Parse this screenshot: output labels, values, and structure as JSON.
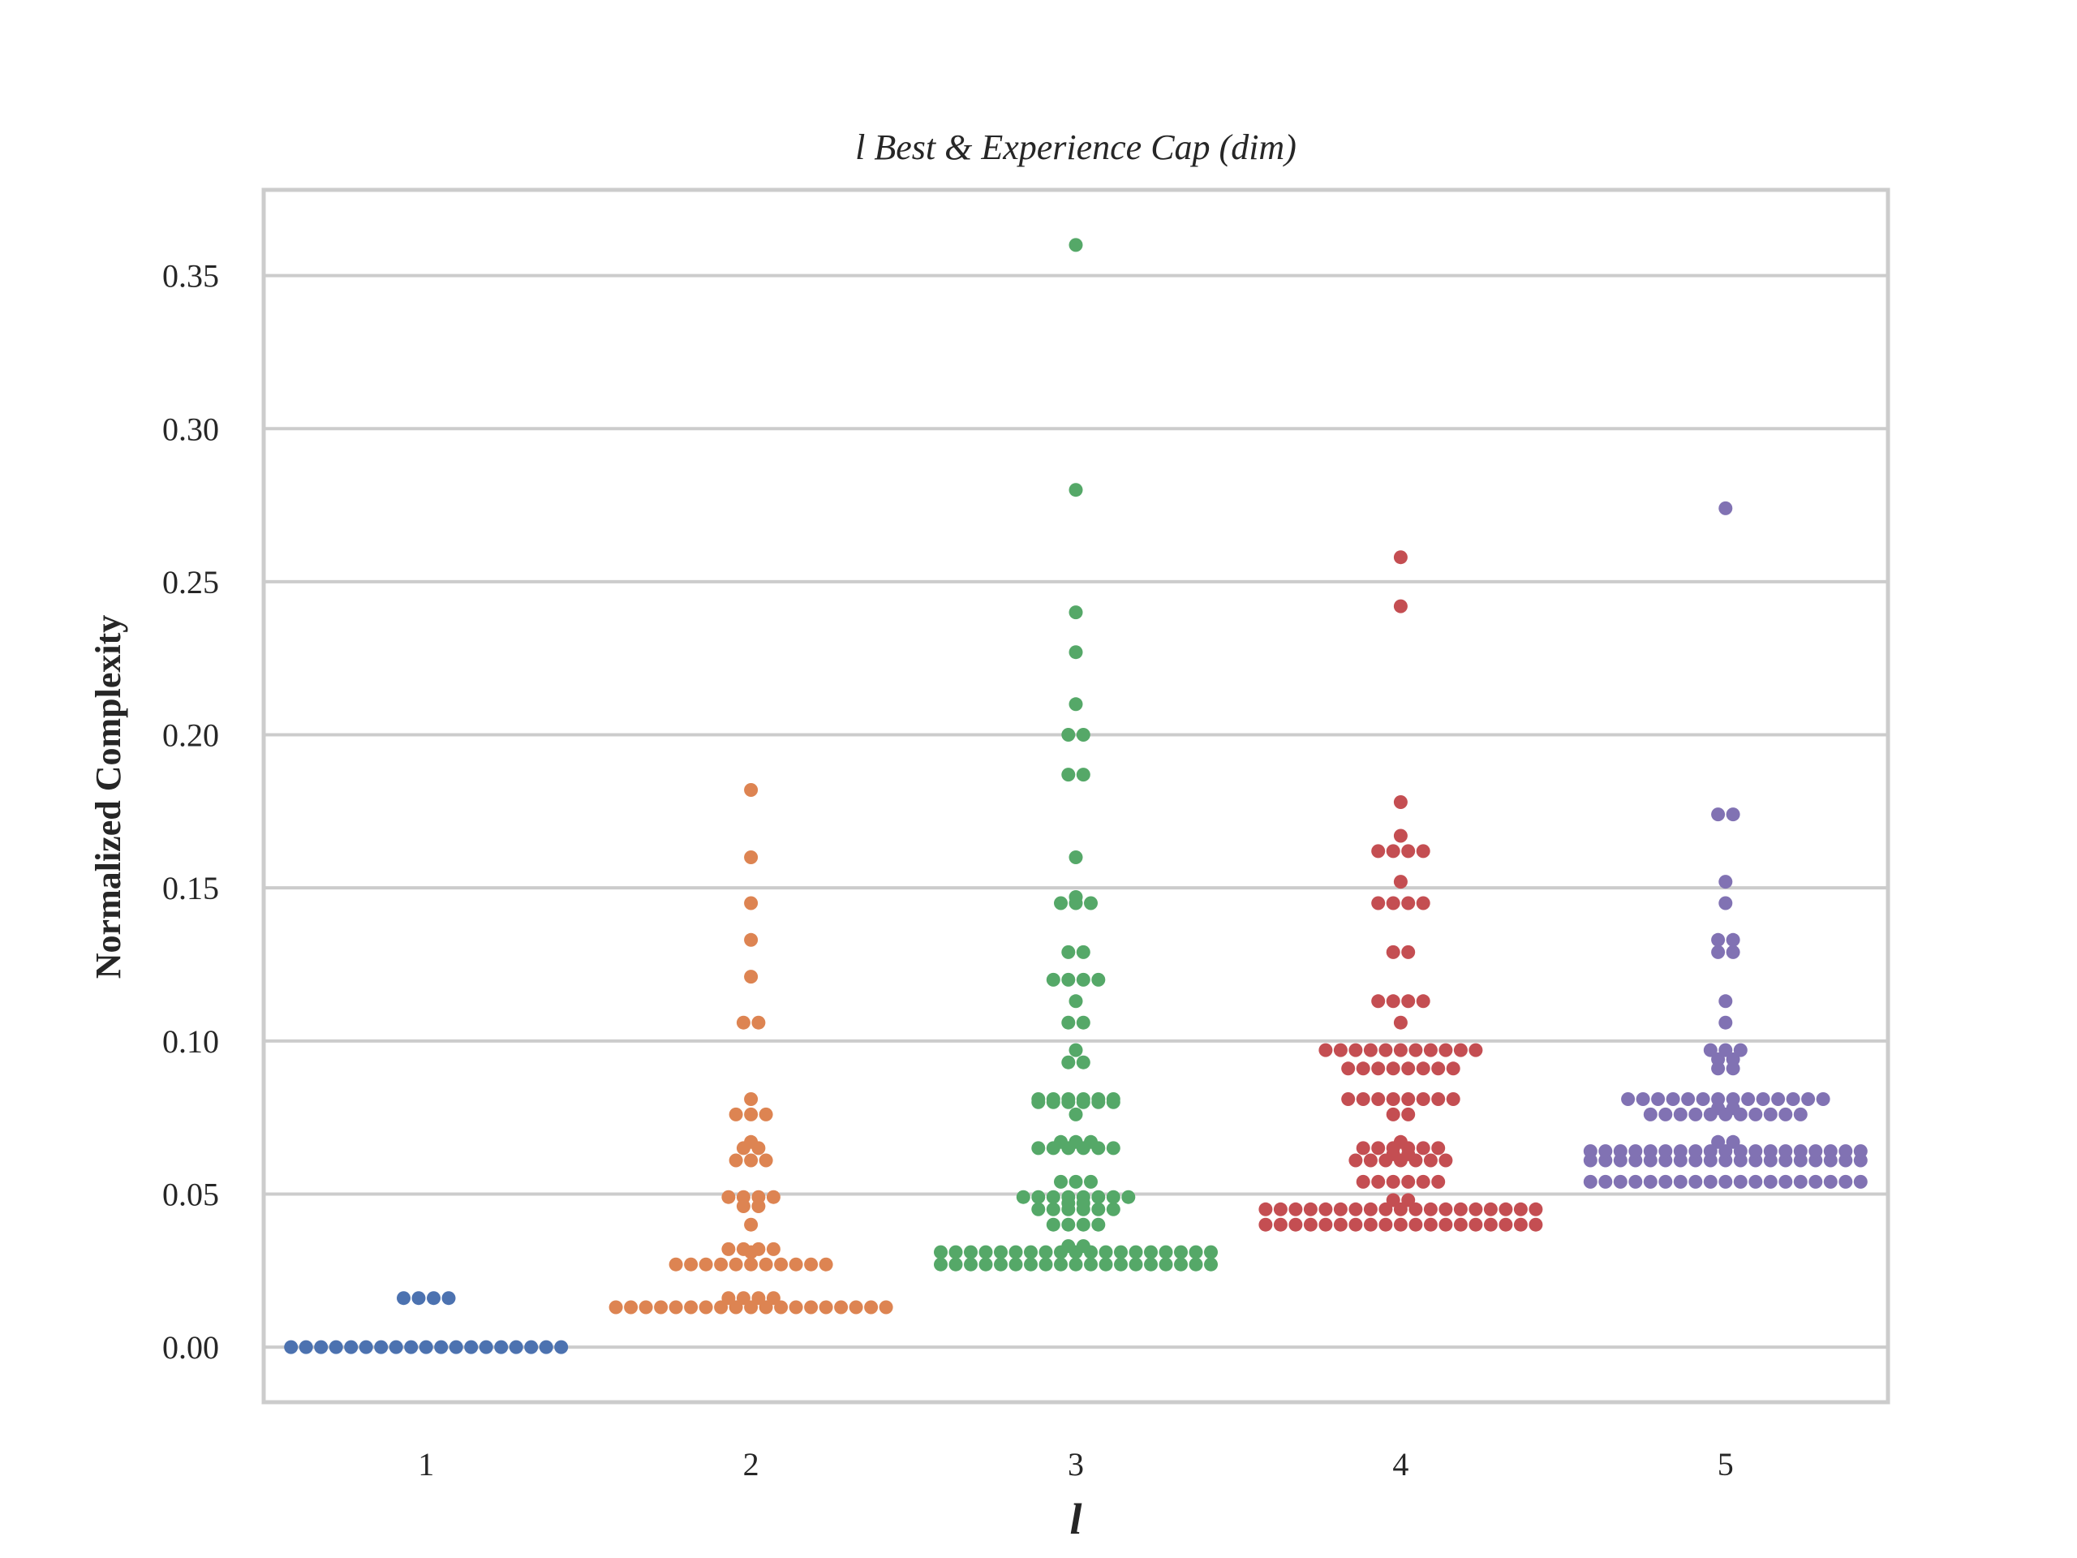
{
  "chart_data": {
    "type": "scatter",
    "subtype": "swarm",
    "title": "l Best & Experience Cap (dim)",
    "xlabel": "l",
    "ylabel": "Normalized Complexity",
    "categories": [
      "1",
      "2",
      "3",
      "4",
      "5"
    ],
    "ylim": [
      -0.018,
      0.378
    ],
    "yticks": [
      "0.00",
      "0.05",
      "0.10",
      "0.15",
      "0.20",
      "0.25",
      "0.30",
      "0.35"
    ],
    "grid": "horizontal",
    "legend": "none",
    "colors": [
      "#4c72b0",
      "#dd8452",
      "#55a868",
      "#c44e52",
      "#8172b3"
    ],
    "groups": [
      {
        "category": "1",
        "points": [
          {
            "y": 0.0,
            "n": 19
          },
          {
            "y": 0.016,
            "n": 4
          }
        ]
      },
      {
        "category": "2",
        "points": [
          {
            "y": 0.013,
            "n": 19
          },
          {
            "y": 0.016,
            "n": 4
          },
          {
            "y": 0.027,
            "n": 11
          },
          {
            "y": 0.031,
            "n": 1
          },
          {
            "y": 0.032,
            "n": 4
          },
          {
            "y": 0.04,
            "n": 1
          },
          {
            "y": 0.046,
            "n": 2
          },
          {
            "y": 0.049,
            "n": 4
          },
          {
            "y": 0.061,
            "n": 3
          },
          {
            "y": 0.065,
            "n": 2
          },
          {
            "y": 0.067,
            "n": 1
          },
          {
            "y": 0.076,
            "n": 3
          },
          {
            "y": 0.081,
            "n": 1
          },
          {
            "y": 0.106,
            "n": 2
          },
          {
            "y": 0.121,
            "n": 1
          },
          {
            "y": 0.133,
            "n": 1
          },
          {
            "y": 0.145,
            "n": 1
          },
          {
            "y": 0.16,
            "n": 1
          },
          {
            "y": 0.182,
            "n": 1
          }
        ]
      },
      {
        "category": "3",
        "points": [
          {
            "y": 0.027,
            "n": 19
          },
          {
            "y": 0.031,
            "n": 19
          },
          {
            "y": 0.033,
            "n": 2
          },
          {
            "y": 0.04,
            "n": 4
          },
          {
            "y": 0.045,
            "n": 6
          },
          {
            "y": 0.047,
            "n": 2
          },
          {
            "y": 0.049,
            "n": 8
          },
          {
            "y": 0.054,
            "n": 3
          },
          {
            "y": 0.065,
            "n": 6
          },
          {
            "y": 0.067,
            "n": 3
          },
          {
            "y": 0.076,
            "n": 1
          },
          {
            "y": 0.08,
            "n": 6
          },
          {
            "y": 0.081,
            "n": 6
          },
          {
            "y": 0.093,
            "n": 2
          },
          {
            "y": 0.097,
            "n": 1
          },
          {
            "y": 0.106,
            "n": 2
          },
          {
            "y": 0.113,
            "n": 1
          },
          {
            "y": 0.12,
            "n": 4
          },
          {
            "y": 0.129,
            "n": 2
          },
          {
            "y": 0.145,
            "n": 3
          },
          {
            "y": 0.147,
            "n": 1
          },
          {
            "y": 0.16,
            "n": 1
          },
          {
            "y": 0.187,
            "n": 2
          },
          {
            "y": 0.2,
            "n": 2
          },
          {
            "y": 0.21,
            "n": 1
          },
          {
            "y": 0.227,
            "n": 1
          },
          {
            "y": 0.24,
            "n": 1
          },
          {
            "y": 0.28,
            "n": 1
          },
          {
            "y": 0.36,
            "n": 1
          }
        ]
      },
      {
        "category": "4",
        "points": [
          {
            "y": 0.04,
            "n": 19
          },
          {
            "y": 0.045,
            "n": 19
          },
          {
            "y": 0.048,
            "n": 2
          },
          {
            "y": 0.054,
            "n": 6
          },
          {
            "y": 0.061,
            "n": 7
          },
          {
            "y": 0.063,
            "n": 2
          },
          {
            "y": 0.065,
            "n": 6
          },
          {
            "y": 0.067,
            "n": 1
          },
          {
            "y": 0.076,
            "n": 2
          },
          {
            "y": 0.081,
            "n": 8
          },
          {
            "y": 0.091,
            "n": 8
          },
          {
            "y": 0.097,
            "n": 11
          },
          {
            "y": 0.106,
            "n": 1
          },
          {
            "y": 0.113,
            "n": 4
          },
          {
            "y": 0.129,
            "n": 2
          },
          {
            "y": 0.145,
            "n": 4
          },
          {
            "y": 0.152,
            "n": 1
          },
          {
            "y": 0.162,
            "n": 4
          },
          {
            "y": 0.167,
            "n": 1
          },
          {
            "y": 0.178,
            "n": 1
          },
          {
            "y": 0.242,
            "n": 1
          },
          {
            "y": 0.258,
            "n": 1
          }
        ]
      },
      {
        "category": "5",
        "points": [
          {
            "y": 0.054,
            "n": 19
          },
          {
            "y": 0.061,
            "n": 19
          },
          {
            "y": 0.064,
            "n": 19
          },
          {
            "y": 0.067,
            "n": 2
          },
          {
            "y": 0.076,
            "n": 11
          },
          {
            "y": 0.078,
            "n": 2
          },
          {
            "y": 0.081,
            "n": 14
          },
          {
            "y": 0.091,
            "n": 2
          },
          {
            "y": 0.094,
            "n": 2
          },
          {
            "y": 0.097,
            "n": 3
          },
          {
            "y": 0.106,
            "n": 1
          },
          {
            "y": 0.113,
            "n": 1
          },
          {
            "y": 0.129,
            "n": 2
          },
          {
            "y": 0.133,
            "n": 2
          },
          {
            "y": 0.145,
            "n": 1
          },
          {
            "y": 0.152,
            "n": 1
          },
          {
            "y": 0.174,
            "n": 2
          },
          {
            "y": 0.274,
            "n": 1
          }
        ]
      }
    ]
  }
}
